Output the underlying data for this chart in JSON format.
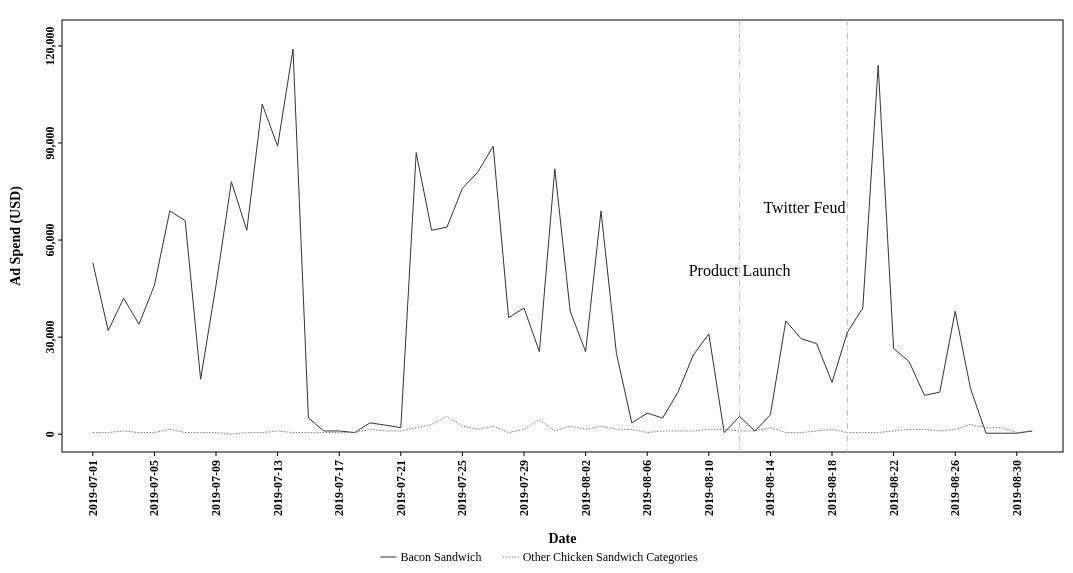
{
  "chart_data": {
    "type": "line",
    "xlabel": "Date",
    "ylabel": "Ad Spend (USD)",
    "x": [
      "2019-07-01",
      "2019-07-02",
      "2019-07-03",
      "2019-07-04",
      "2019-07-05",
      "2019-07-06",
      "2019-07-07",
      "2019-07-08",
      "2019-07-09",
      "2019-07-10",
      "2019-07-11",
      "2019-07-12",
      "2019-07-13",
      "2019-07-14",
      "2019-07-15",
      "2019-07-16",
      "2019-07-17",
      "2019-07-18",
      "2019-07-19",
      "2019-07-20",
      "2019-07-21",
      "2019-07-22",
      "2019-07-23",
      "2019-07-24",
      "2019-07-25",
      "2019-07-26",
      "2019-07-27",
      "2019-07-28",
      "2019-07-29",
      "2019-07-30",
      "2019-07-31",
      "2019-08-01",
      "2019-08-02",
      "2019-08-03",
      "2019-08-04",
      "2019-08-05",
      "2019-08-06",
      "2019-08-07",
      "2019-08-08",
      "2019-08-09",
      "2019-08-10",
      "2019-08-11",
      "2019-08-12",
      "2019-08-13",
      "2019-08-14",
      "2019-08-15",
      "2019-08-16",
      "2019-08-17",
      "2019-08-18",
      "2019-08-19",
      "2019-08-20",
      "2019-08-21",
      "2019-08-22",
      "2019-08-23",
      "2019-08-24",
      "2019-08-25",
      "2019-08-26",
      "2019-08-27",
      "2019-08-28",
      "2019-08-29",
      "2019-08-30",
      "2019-08-31"
    ],
    "series": [
      {
        "name": "Bacon Sandwich",
        "color": "#333333",
        "line_style": "solid",
        "values": [
          53000,
          32000,
          42000,
          34000,
          46000,
          69000,
          66000,
          17000,
          46000,
          78000,
          63000,
          102000,
          89000,
          119000,
          5000,
          1000,
          1000,
          500,
          3500,
          2800,
          2000,
          87000,
          63000,
          64000,
          76000,
          81000,
          89000,
          36000,
          39000,
          25500,
          82000,
          38000,
          25500,
          69000,
          25000,
          3500,
          6500,
          5000,
          13000,
          24500,
          31000,
          500,
          5500,
          1000,
          6000,
          35000,
          29500,
          28000,
          16000,
          31500,
          39000,
          114000,
          26500,
          22500,
          12000,
          13000,
          38000,
          14000,
          300,
          300,
          300,
          1000
        ]
      },
      {
        "name": "Other Chicken Sandwich Categories",
        "color": "#777777",
        "line_style": "dotted",
        "values": [
          500,
          500,
          1000,
          500,
          500,
          1500,
          500,
          500,
          500,
          0,
          500,
          500,
          1000,
          500,
          500,
          500,
          500,
          500,
          1500,
          1000,
          1000,
          2000,
          3000,
          5500,
          2500,
          1500,
          2500,
          500,
          1500,
          4500,
          1000,
          2500,
          1500,
          2500,
          1500,
          1500,
          500,
          1000,
          1000,
          1000,
          1500,
          1500,
          1000,
          1000,
          2000,
          500,
          500,
          1000,
          1500,
          500,
          500,
          500,
          1000,
          1500,
          1500,
          1000,
          1500,
          3000,
          2000,
          2000,
          500,
          1000
        ]
      }
    ],
    "xlim": [
      "2019-06-29",
      "2019-09-02"
    ],
    "xticks": [
      "2019-07-01",
      "2019-07-05",
      "2019-07-09",
      "2019-07-13",
      "2019-07-17",
      "2019-07-21",
      "2019-07-25",
      "2019-07-29",
      "2019-08-02",
      "2019-08-06",
      "2019-08-10",
      "2019-08-14",
      "2019-08-18",
      "2019-08-22",
      "2019-08-26",
      "2019-08-30"
    ],
    "ylim": [
      -5500,
      128000
    ],
    "yticks": [
      {
        "value": 0,
        "label": "0"
      },
      {
        "value": 30000,
        "label": "30,000"
      },
      {
        "value": 60000,
        "label": "60,000"
      },
      {
        "value": 90000,
        "label": "90,000"
      },
      {
        "value": 120000,
        "label": "120,000"
      }
    ],
    "ref_lines": [
      {
        "axis": "x",
        "value": "2019-08-12",
        "label": "Product Launch",
        "color": "#bbbbbb",
        "line_style": "dashdot"
      },
      {
        "axis": "x",
        "value": "2019-08-19",
        "label": "Twitter Feud",
        "color": "#bbbbbb",
        "line_style": "dashdot"
      }
    ],
    "legend": "bottom",
    "grid": false
  }
}
